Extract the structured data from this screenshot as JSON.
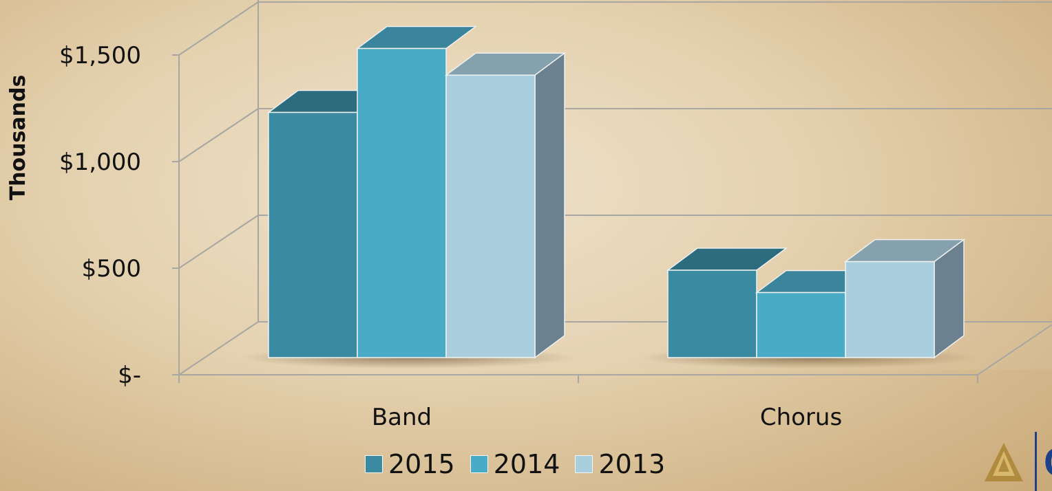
{
  "chart_data": {
    "type": "bar",
    "ylabel": "Thousands",
    "categories": [
      "Band",
      "Chorus"
    ],
    "series": [
      {
        "name": "2015",
        "values": [
          1150,
          410
        ],
        "color": "#3a8ba1"
      },
      {
        "name": "2014",
        "values": [
          1450,
          305
        ],
        "color": "#4aabc7"
      },
      {
        "name": "2013",
        "values": [
          1325,
          450
        ],
        "color": "#a9cfde"
      }
    ],
    "ylim": [
      0,
      1500
    ],
    "yticks": [
      {
        "value": 0,
        "label": "$-"
      },
      {
        "value": 500,
        "label": "$500"
      },
      {
        "value": 1000,
        "label": "$1,000"
      },
      {
        "value": 1500,
        "label": "$1,500"
      }
    ],
    "grid": true,
    "legend_position": "bottom",
    "style": "3d-clustered-column"
  },
  "logo": {
    "text": "CRI",
    "color": "#1e3f8a",
    "accent": "#b08a3e"
  }
}
